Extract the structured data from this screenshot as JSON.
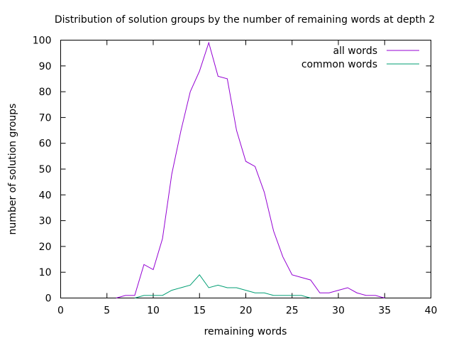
{
  "chart_data": {
    "type": "line",
    "title": "Distribution of solution groups by the number of remaining words at depth 2",
    "xlabel": "remaining words",
    "ylabel": "number of solution groups",
    "xlim": [
      0,
      40
    ],
    "ylim": [
      0,
      100
    ],
    "xticks": [
      0,
      5,
      10,
      15,
      20,
      25,
      30,
      35,
      40
    ],
    "yticks": [
      0,
      10,
      20,
      30,
      40,
      50,
      60,
      70,
      80,
      90,
      100
    ],
    "grid": false,
    "legend_position": "top-right",
    "series": [
      {
        "name": "all words",
        "color": "#9400d3",
        "x": [
          6,
          7,
          8,
          9,
          10,
          11,
          12,
          13,
          14,
          15,
          16,
          17,
          18,
          19,
          20,
          21,
          22,
          23,
          24,
          25,
          26,
          27,
          28,
          29,
          30,
          31,
          32,
          33,
          34,
          35
        ],
        "y": [
          0,
          1,
          1,
          13,
          11,
          23,
          48,
          65,
          80,
          88,
          99,
          86,
          85,
          65,
          53,
          51,
          41,
          26,
          16,
          9,
          8,
          7,
          2,
          2,
          3,
          4,
          2,
          1,
          1,
          0
        ]
      },
      {
        "name": "common words",
        "color": "#009e73",
        "x": [
          8,
          9,
          10,
          11,
          12,
          13,
          14,
          15,
          16,
          17,
          18,
          19,
          20,
          21,
          22,
          23,
          24,
          25,
          26,
          27
        ],
        "y": [
          0,
          1,
          1,
          1,
          3,
          4,
          5,
          9,
          4,
          5,
          4,
          4,
          3,
          2,
          2,
          1,
          1,
          1,
          1,
          0
        ]
      }
    ]
  }
}
